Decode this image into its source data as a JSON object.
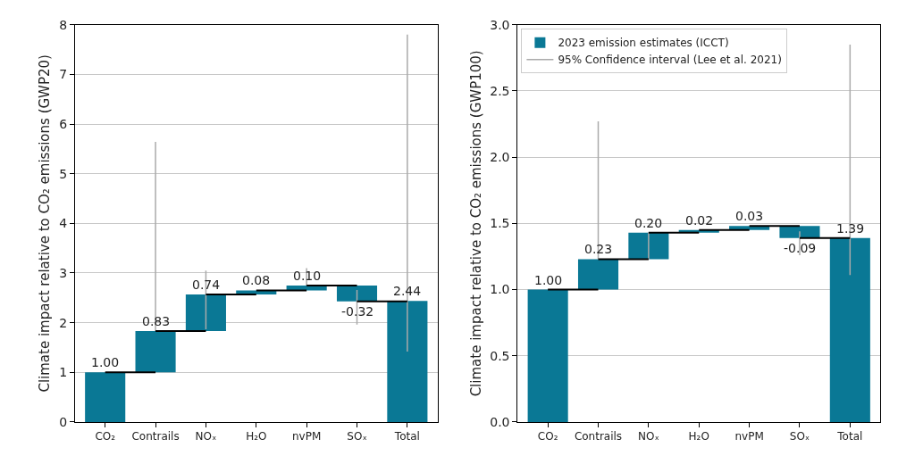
{
  "chart_data": [
    {
      "type": "bar",
      "categories": [
        "CO₂",
        "Contrails",
        "NOₓ",
        "H₂O",
        "nvPM",
        "SOₓ",
        "Total"
      ],
      "ylabel": "Climate impact relative to CO₂ emissions (GWP20)",
      "ylim": [
        0,
        8
      ],
      "yticks": [
        0,
        1,
        2,
        3,
        4,
        5,
        6,
        7,
        8
      ],
      "grid": "y",
      "legend": false,
      "series": [
        {
          "color": "#0a7895",
          "base": [
            0,
            1.0,
            1.83,
            2.57,
            2.65,
            2.75,
            0
          ],
          "values": [
            1.0,
            0.83,
            0.74,
            0.08,
            0.1,
            -0.32,
            2.44
          ],
          "value_labels": [
            "1.00",
            "0.83",
            "0.74",
            "0.08",
            "0.10",
            "-0.32",
            "2.44"
          ],
          "errors": [
            null,
            [
              1.83,
              5.64
            ],
            [
              1.87,
              3.05
            ],
            null,
            [
              2.75,
              3.1
            ],
            [
              1.96,
              2.66
            ],
            [
              1.42,
              7.8
            ]
          ]
        },
        {
          "type": "scatter",
          "marker": "none",
          "color": "#aaaaaa",
          "values": [
            null,
            null,
            null,
            null,
            null,
            null,
            null
          ]
        }
      ]
    },
    {
      "type": "bar",
      "categories": [
        "CO₂",
        "Contrails",
        "NOₓ",
        "H₂O",
        "nvPM",
        "SOₓ",
        "Total"
      ],
      "ylabel": "Climate impact relative to CO₂ emissions (GWP100)",
      "ylim": [
        0,
        3.0
      ],
      "yticks": [
        {
          "value": 0,
          "label": "0.0"
        },
        0.5,
        {
          "value": 1,
          "label": "1.0"
        },
        1.5,
        {
          "value": 2,
          "label": "2.0"
        },
        2.5,
        {
          "value": 3,
          "label": "3.0"
        }
      ],
      "grid": "y",
      "legend": "top left",
      "series": [
        {
          "name": "2023 emission estimates (ICCT)",
          "color": "#0a7895",
          "base": [
            0,
            1.0,
            1.23,
            1.43,
            1.45,
            1.48,
            0
          ],
          "values": [
            1.0,
            0.23,
            0.2,
            0.02,
            0.03,
            -0.09,
            1.39
          ],
          "value_labels": [
            "1.00",
            "0.23",
            "0.20",
            "0.02",
            "0.03",
            "-0.09",
            "1.39"
          ],
          "errors": [
            null,
            [
              1.23,
              2.27
            ],
            [
              1.23,
              1.43
            ],
            null,
            null,
            [
              1.26,
              1.44
            ],
            [
              1.11,
              2.85
            ]
          ]
        },
        {
          "name": "95% Confidence interval (Lee et al. 2021)",
          "type": "scatter",
          "marker": "none",
          "color": "#aaaaaa",
          "values": [
            null,
            null,
            null,
            null,
            null,
            null,
            null
          ]
        }
      ]
    }
  ]
}
